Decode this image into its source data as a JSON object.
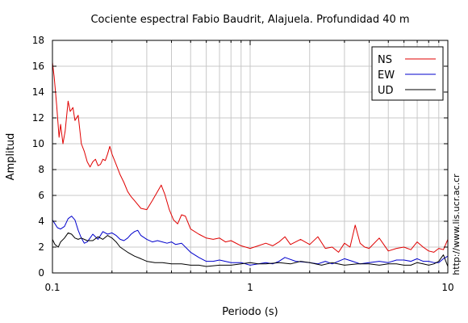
{
  "chart_data": {
    "type": "line",
    "title": "Cociente espectral Fabio Baudrit, Alajuela. Profundidad 40 m",
    "xlabel": "Periodo (s)",
    "ylabel": "Amplitud",
    "xscale": "log",
    "xlim": [
      0.1,
      10
    ],
    "ylim": [
      0,
      18
    ],
    "grid": true,
    "legend_position": "top-right",
    "x_ticks": [
      "0.1",
      "1",
      "10"
    ],
    "y_ticks": [
      "0",
      "2",
      "4",
      "6",
      "8",
      "10",
      "12",
      "14",
      "16",
      "18"
    ],
    "watermark": "http://www.lis.ucr.ac.cr",
    "series": [
      {
        "name": "NS",
        "color": "#e00000",
        "x": [
          0.1,
          0.102,
          0.105,
          0.108,
          0.11,
          0.113,
          0.116,
          0.12,
          0.123,
          0.127,
          0.13,
          0.135,
          0.14,
          0.145,
          0.15,
          0.155,
          0.16,
          0.165,
          0.17,
          0.175,
          0.18,
          0.185,
          0.19,
          0.195,
          0.2,
          0.21,
          0.22,
          0.23,
          0.24,
          0.25,
          0.26,
          0.28,
          0.3,
          0.32,
          0.34,
          0.355,
          0.37,
          0.39,
          0.41,
          0.43,
          0.45,
          0.47,
          0.5,
          0.55,
          0.6,
          0.65,
          0.7,
          0.75,
          0.8,
          0.9,
          1.0,
          1.1,
          1.2,
          1.3,
          1.4,
          1.5,
          1.6,
          1.8,
          2.0,
          2.2,
          2.4,
          2.6,
          2.8,
          3.0,
          3.2,
          3.4,
          3.6,
          3.8,
          4.0,
          4.5,
          5.0,
          5.5,
          6.0,
          6.5,
          7.0,
          7.5,
          8.0,
          8.5,
          9.0,
          9.5,
          10.0
        ],
        "y": [
          16.3,
          15.2,
          13.0,
          10.5,
          11.5,
          10.0,
          11.0,
          13.3,
          12.5,
          12.8,
          11.8,
          12.2,
          10.0,
          9.4,
          8.6,
          8.2,
          8.6,
          8.8,
          8.3,
          8.4,
          8.8,
          8.7,
          9.2,
          9.8,
          9.2,
          8.4,
          7.6,
          7.0,
          6.3,
          5.9,
          5.6,
          5.0,
          4.9,
          5.6,
          6.3,
          6.8,
          6.1,
          4.9,
          4.1,
          3.8,
          4.5,
          4.4,
          3.4,
          3.0,
          2.7,
          2.6,
          2.7,
          2.4,
          2.5,
          2.1,
          1.9,
          2.1,
          2.3,
          2.1,
          2.4,
          2.8,
          2.2,
          2.6,
          2.2,
          2.8,
          1.9,
          2.0,
          1.6,
          2.3,
          2.0,
          3.7,
          2.3,
          2.0,
          1.9,
          2.7,
          1.7,
          1.9,
          2.0,
          1.8,
          2.4,
          2.0,
          1.7,
          1.6,
          1.9,
          1.8,
          2.6
        ]
      },
      {
        "name": "EW",
        "color": "#0000cc",
        "x": [
          0.1,
          0.103,
          0.106,
          0.11,
          0.115,
          0.12,
          0.125,
          0.13,
          0.135,
          0.14,
          0.145,
          0.15,
          0.155,
          0.16,
          0.17,
          0.18,
          0.19,
          0.2,
          0.21,
          0.22,
          0.23,
          0.24,
          0.25,
          0.26,
          0.27,
          0.28,
          0.3,
          0.32,
          0.34,
          0.36,
          0.38,
          0.4,
          0.42,
          0.45,
          0.5,
          0.55,
          0.6,
          0.65,
          0.7,
          0.8,
          0.9,
          1.0,
          1.1,
          1.2,
          1.3,
          1.4,
          1.5,
          1.7,
          2.0,
          2.2,
          2.4,
          2.6,
          3.0,
          3.3,
          3.6,
          4.0,
          4.5,
          5.0,
          5.5,
          6.0,
          6.5,
          7.0,
          7.5,
          8.0,
          8.5,
          9.0,
          9.5,
          10.0
        ],
        "y": [
          4.1,
          3.8,
          3.5,
          3.4,
          3.6,
          4.2,
          4.4,
          4.1,
          3.3,
          2.7,
          2.3,
          2.4,
          2.7,
          3.0,
          2.6,
          3.2,
          3.0,
          3.1,
          2.9,
          2.6,
          2.5,
          2.7,
          3.0,
          3.2,
          3.3,
          2.9,
          2.6,
          2.4,
          2.5,
          2.4,
          2.3,
          2.4,
          2.2,
          2.3,
          1.6,
          1.2,
          0.9,
          0.9,
          1.0,
          0.8,
          0.8,
          0.6,
          0.7,
          0.8,
          0.7,
          0.9,
          1.2,
          0.9,
          0.8,
          0.7,
          0.9,
          0.7,
          1.1,
          0.9,
          0.7,
          0.8,
          0.9,
          0.8,
          1.0,
          1.0,
          0.9,
          1.1,
          0.9,
          0.9,
          0.8,
          0.8,
          1.1,
          1.3
        ]
      },
      {
        "name": "UD",
        "color": "#000000",
        "x": [
          0.1,
          0.103,
          0.107,
          0.11,
          0.115,
          0.12,
          0.125,
          0.13,
          0.135,
          0.14,
          0.15,
          0.16,
          0.17,
          0.18,
          0.19,
          0.2,
          0.21,
          0.22,
          0.24,
          0.26,
          0.28,
          0.3,
          0.33,
          0.36,
          0.4,
          0.45,
          0.5,
          0.55,
          0.6,
          0.7,
          0.8,
          0.9,
          1.0,
          1.1,
          1.2,
          1.4,
          1.6,
          1.8,
          2.0,
          2.3,
          2.6,
          3.0,
          3.5,
          4.0,
          4.5,
          5.0,
          5.5,
          6.0,
          6.5,
          7.0,
          7.5,
          8.0,
          8.5,
          9.0,
          9.5,
          10.0
        ],
        "y": [
          2.6,
          2.2,
          2.0,
          2.4,
          2.7,
          3.1,
          3.0,
          2.7,
          2.6,
          2.7,
          2.5,
          2.5,
          2.8,
          2.6,
          2.9,
          2.7,
          2.4,
          2.0,
          1.6,
          1.3,
          1.1,
          0.9,
          0.8,
          0.8,
          0.7,
          0.7,
          0.6,
          0.6,
          0.5,
          0.6,
          0.6,
          0.7,
          0.8,
          0.7,
          0.7,
          0.8,
          0.7,
          0.9,
          0.8,
          0.6,
          0.8,
          0.6,
          0.7,
          0.7,
          0.6,
          0.7,
          0.7,
          0.6,
          0.6,
          0.8,
          0.7,
          0.6,
          0.7,
          0.9,
          1.4,
          0.5
        ]
      }
    ]
  }
}
